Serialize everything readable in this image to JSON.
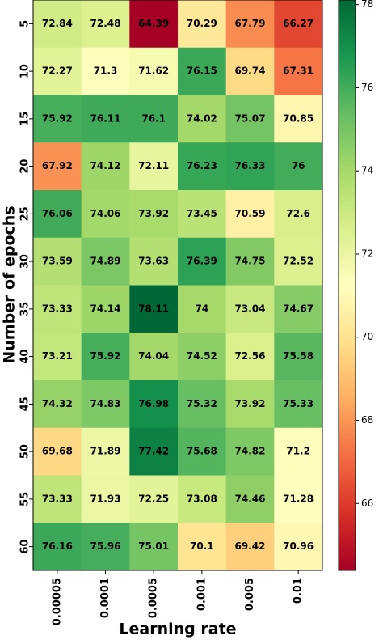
{
  "chart_data": {
    "type": "heatmap",
    "x_label": "Learning rate",
    "y_label": "Number of epochs",
    "x_categories": [
      "0.00005",
      "0.0001",
      "0.0005",
      "0.001",
      "0.005",
      "0.01"
    ],
    "y_categories": [
      "5",
      "10",
      "15",
      "20",
      "25",
      "30",
      "35",
      "40",
      "45",
      "50",
      "55",
      "60"
    ],
    "values": [
      [
        72.84,
        72.48,
        64.39,
        70.29,
        67.79,
        66.27
      ],
      [
        72.27,
        71.3,
        71.62,
        76.15,
        69.74,
        67.31
      ],
      [
        75.92,
        76.11,
        76.1,
        74.02,
        75.07,
        70.85
      ],
      [
        67.92,
        74.12,
        72.11,
        76.23,
        76.33,
        76
      ],
      [
        76.06,
        74.06,
        73.92,
        73.45,
        70.59,
        72.6
      ],
      [
        73.59,
        74.89,
        73.63,
        76.39,
        74.75,
        72.52
      ],
      [
        73.33,
        74.14,
        78.11,
        74,
        73.04,
        74.67
      ],
      [
        73.21,
        75.92,
        74.04,
        74.52,
        72.56,
        75.58
      ],
      [
        74.32,
        74.83,
        76.98,
        75.32,
        73.92,
        75.33
      ],
      [
        69.68,
        71.89,
        77.42,
        75.68,
        74.82,
        71.2
      ],
      [
        73.33,
        71.93,
        72.25,
        73.08,
        74.46,
        71.28
      ],
      [
        76.16,
        75.96,
        75.01,
        70.1,
        69.42,
        70.96
      ]
    ],
    "colormap": "RdYlGn",
    "colorbar_lim": [
      64.39,
      78.11
    ],
    "colorbar_ticks": [
      66,
      68,
      70,
      72,
      74,
      76,
      78
    ]
  }
}
